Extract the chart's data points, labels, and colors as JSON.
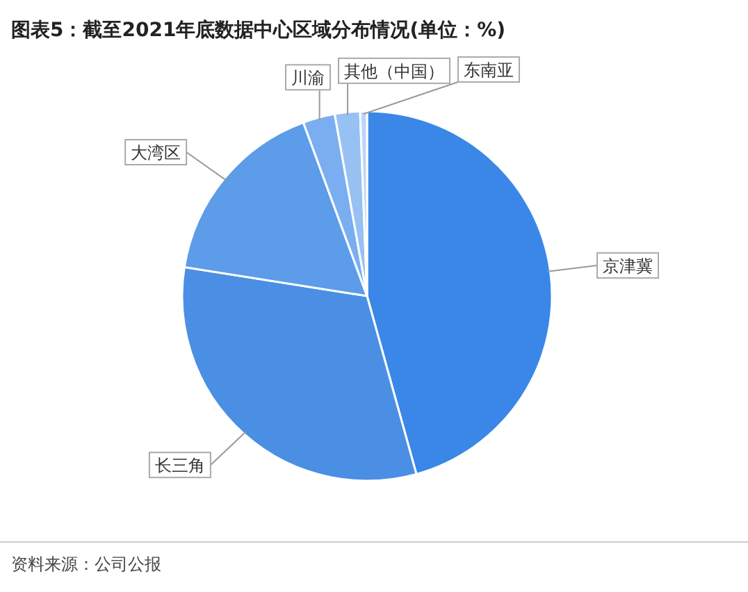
{
  "chart_data": {
    "type": "pie",
    "title": "图表5：截至2021年底数据中心区域分布情况(单位：%)",
    "categories": [
      "京津冀",
      "长三角",
      "大湾区",
      "川渝",
      "其他（中国）",
      "东南亚"
    ],
    "values": [
      45.7,
      31.8,
      16.9,
      2.8,
      2.2,
      0.6
    ],
    "colors": [
      "#3a87e8",
      "#4a8fe3",
      "#5c9ce9",
      "#7aaef0",
      "#98c1f3",
      "#bcd6f6"
    ],
    "annotations": [
      "资料来源：公司公报"
    ]
  }
}
